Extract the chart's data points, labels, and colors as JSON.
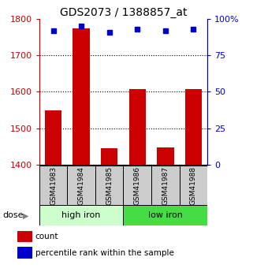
{
  "title": "GDS2073 / 1388857_at",
  "categories": [
    "GSM41983",
    "GSM41984",
    "GSM41985",
    "GSM41986",
    "GSM41987",
    "GSM41988"
  ],
  "bar_values": [
    1550,
    1775,
    1445,
    1607,
    1447,
    1607
  ],
  "percentile_values": [
    92,
    95,
    91,
    93,
    92,
    93
  ],
  "ylim_left": [
    1400,
    1800
  ],
  "ylim_right": [
    0,
    100
  ],
  "yticks_left": [
    1400,
    1500,
    1600,
    1700,
    1800
  ],
  "yticks_right": [
    0,
    25,
    50,
    75,
    100
  ],
  "yticklabels_right": [
    "0",
    "25",
    "50",
    "75",
    "100%"
  ],
  "bar_color": "#cc0000",
  "dot_color": "#0000cc",
  "bar_width": 0.6,
  "groups": [
    {
      "label": "high iron",
      "indices": [
        0,
        1,
        2
      ],
      "color": "#ccffcc"
    },
    {
      "label": "low iron",
      "indices": [
        3,
        4,
        5
      ],
      "color": "#44dd44"
    }
  ],
  "dose_label": "dose",
  "legend_count_label": "count",
  "legend_percentile_label": "percentile rank within the sample",
  "background_color": "#ffffff",
  "label_bg_color": "#cccccc",
  "title_fontsize": 10,
  "tick_fontsize": 8,
  "axis_left_color": "#cc0000",
  "axis_right_color": "#0000cc"
}
